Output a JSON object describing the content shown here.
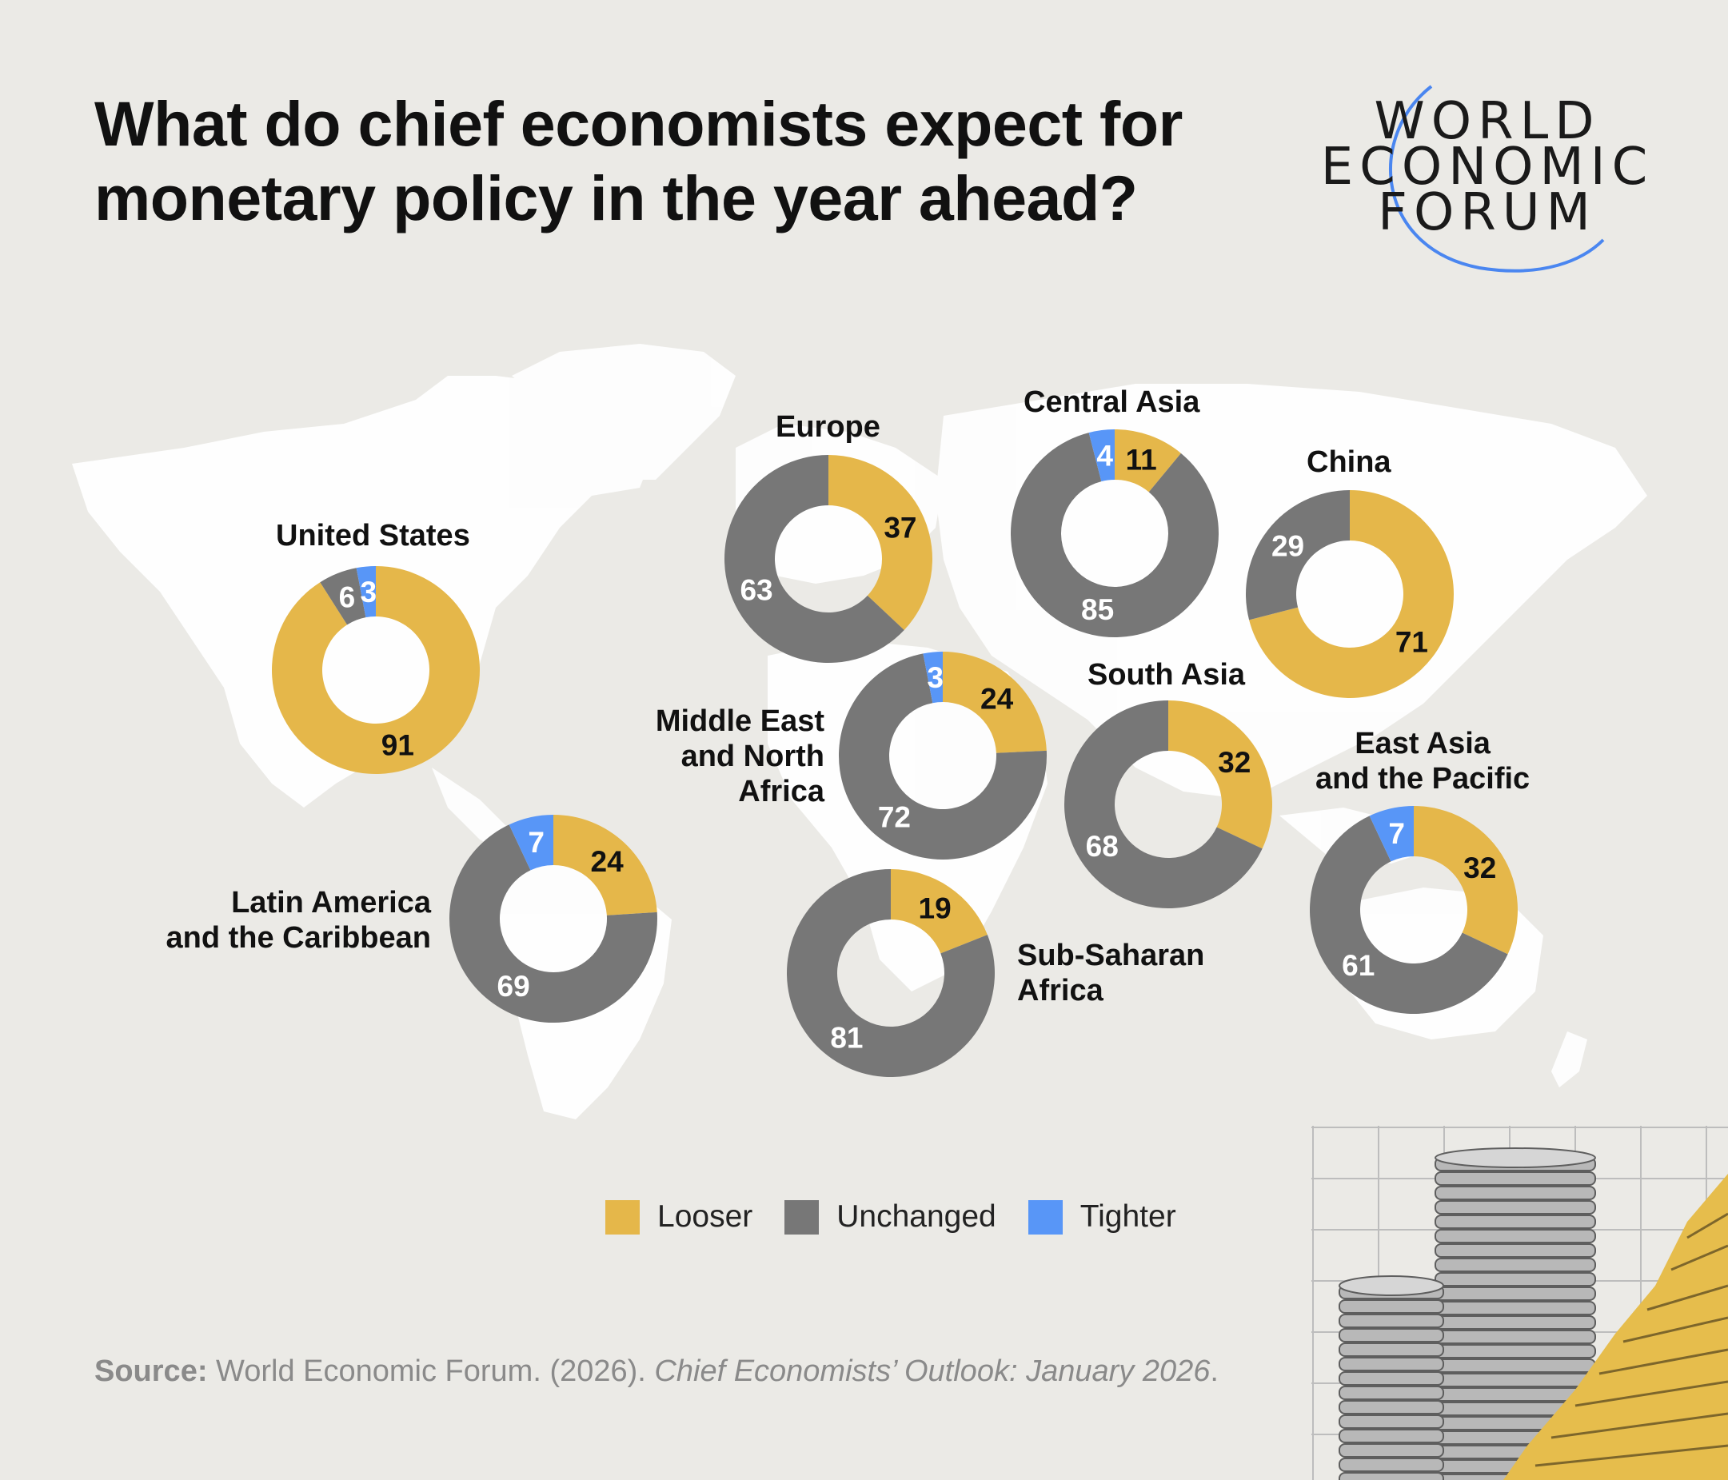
{
  "title": {
    "line1": "What do chief economists expect for",
    "line2": "monetary policy in the year ahead?"
  },
  "logo": {
    "line1": "WORLD",
    "line2": "ECONOMIC",
    "line3": "FORUM",
    "arc_color": "#4a86f0"
  },
  "colors": {
    "looser": "#e5b74a",
    "unchanged": "#777777",
    "tighter": "#5896f7",
    "background": "#ebeae6"
  },
  "legend": [
    {
      "key": "looser",
      "label": "Looser"
    },
    {
      "key": "unchanged",
      "label": "Unchanged"
    },
    {
      "key": "tighter",
      "label": "Tighter"
    }
  ],
  "source": {
    "prefix": "Source:",
    "text": " World Economic Forum. (2026). ",
    "italic": "Chief Economists’ Outlook: January 2026",
    "suffix": "."
  },
  "chart_data": {
    "type": "donut",
    "series_order": [
      "Looser",
      "Unchanged",
      "Tighter"
    ],
    "regions": [
      {
        "name": "United States",
        "looser": 91,
        "unchanged": 6,
        "tighter": 3
      },
      {
        "name": "Europe",
        "looser": 37,
        "unchanged": 63,
        "tighter": 0
      },
      {
        "name": "Central Asia",
        "looser": 11,
        "unchanged": 85,
        "tighter": 4
      },
      {
        "name": "China",
        "looser": 71,
        "unchanged": 29,
        "tighter": 0
      },
      {
        "name": "Middle East and North Africa",
        "name_lines": [
          "Middle East",
          "and North",
          "Africa"
        ],
        "looser": 24,
        "unchanged": 72,
        "tighter": 3
      },
      {
        "name": "South Asia",
        "looser": 32,
        "unchanged": 68,
        "tighter": 0
      },
      {
        "name": "East Asia and the Pacific",
        "name_lines": [
          "East Asia",
          "and the Pacific"
        ],
        "looser": 32,
        "unchanged": 61,
        "tighter": 7
      },
      {
        "name": "Latin America and the Caribbean",
        "name_lines": [
          "Latin America",
          "and the Caribbean"
        ],
        "looser": 24,
        "unchanged": 69,
        "tighter": 7
      },
      {
        "name": "Sub-Saharan Africa",
        "name_lines": [
          "Sub-Saharan",
          "Africa"
        ],
        "looser": 19,
        "unchanged": 81,
        "tighter": 0
      }
    ]
  }
}
